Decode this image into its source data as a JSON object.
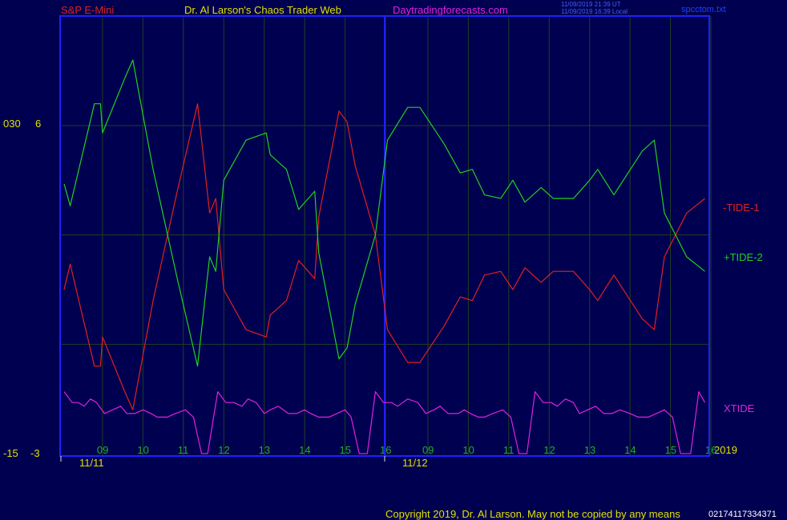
{
  "header": {
    "symbol": "S&P E-Mini",
    "title": "Dr. Al Larson's Chaos Trader Web",
    "site": "Daytradingforecasts.com",
    "timestamp_ut": "11/09/2019 21:39 UT",
    "timestamp_local": "11/09/2019 16:39 Local",
    "filename": "spcctom.txt"
  },
  "footer": {
    "copyright": "Copyright 2019, Dr. Al Larson. May not be copied by any means",
    "code": "02174117334371"
  },
  "colors": {
    "background": "#000050",
    "frame": "#2020ff",
    "grid": "#204020",
    "tide1": "#e02020",
    "tide2": "#20d020",
    "xtide": "#e020e0",
    "hour_labels": "#20b020",
    "axis_text": "#e0e000"
  },
  "chart_data": {
    "type": "line",
    "left_axis": {
      "outer_labels": [
        "030",
        "-15"
      ],
      "inner_labels": [
        "6",
        "-3"
      ]
    },
    "hour_ticks": [
      "09",
      "10",
      "11",
      "12",
      "13",
      "14",
      "15",
      "16",
      "09",
      "10",
      "11",
      "12",
      "13",
      "14",
      "15",
      "16"
    ],
    "dates": [
      "11/11",
      "11/12"
    ],
    "year": "2019",
    "series": [
      {
        "name": "-TIDE-1",
        "x": [
          0,
          0.15,
          0.75,
          0.9,
          0.95,
          1.5,
          1.7,
          2.2,
          2.8,
          3.3,
          3.6,
          3.75,
          3.95,
          4.5,
          5.0,
          5.1,
          5.5,
          5.8,
          6.2,
          6.3,
          6.8,
          7.0,
          7.2,
          7.7,
          8.0,
          8.5,
          8.8,
          9.4,
          9.8,
          10.1,
          10.4,
          10.8,
          11.1,
          11.4,
          11.8,
          12.1,
          12.6,
          13.0,
          13.2,
          13.6,
          14.3,
          14.6,
          14.85,
          15.4,
          15.85
        ],
        "values": [
          1.5,
          2.2,
          -0.6,
          -0.6,
          0.2,
          -1.3,
          -1.8,
          1.2,
          4.2,
          6.6,
          3.6,
          4.0,
          1.5,
          0.4,
          0.2,
          0.8,
          1.2,
          2.3,
          1.8,
          3.5,
          6.4,
          6.1,
          4.9,
          3.0,
          0.4,
          -0.5,
          -0.5,
          0.5,
          1.3,
          1.2,
          1.9,
          2.0,
          1.5,
          2.1,
          1.7,
          2.0,
          2.0,
          1.5,
          1.2,
          1.9,
          0.7,
          0.4,
          2.4,
          3.6,
          4.0
        ],
        "color": "#e02020"
      },
      {
        "name": "+TIDE-2",
        "x": [
          0,
          0.15,
          0.75,
          0.9,
          0.95,
          1.5,
          1.7,
          2.2,
          2.8,
          3.3,
          3.6,
          3.75,
          3.95,
          4.5,
          5.0,
          5.1,
          5.5,
          5.8,
          6.2,
          6.3,
          6.8,
          7.0,
          7.2,
          7.7,
          8.0,
          8.5,
          8.8,
          9.4,
          9.8,
          10.1,
          10.4,
          10.8,
          11.1,
          11.4,
          11.8,
          12.1,
          12.6,
          13.0,
          13.2,
          13.6,
          14.3,
          14.6,
          14.85,
          15.4,
          15.85
        ],
        "values": [
          4.4,
          3.8,
          6.6,
          6.6,
          5.8,
          7.3,
          7.8,
          4.8,
          1.8,
          -0.6,
          2.4,
          2.0,
          4.5,
          5.6,
          5.8,
          5.2,
          4.8,
          3.7,
          4.2,
          2.5,
          -0.4,
          -0.1,
          1.1,
          3.0,
          5.6,
          6.5,
          6.5,
          5.5,
          4.7,
          4.8,
          4.1,
          4.0,
          4.5,
          3.9,
          4.3,
          4.0,
          4.0,
          4.5,
          4.8,
          4.1,
          5.3,
          5.6,
          3.6,
          2.4,
          2.0
        ],
        "color": "#20d020"
      },
      {
        "name": "XTIDE",
        "x": [
          0,
          0.2,
          0.35,
          0.5,
          0.65,
          0.8,
          1.0,
          1.2,
          1.4,
          1.55,
          1.75,
          1.95,
          2.15,
          2.3,
          2.55,
          2.75,
          3.0,
          3.2,
          3.4,
          3.55,
          3.8,
          4.0,
          4.2,
          4.4,
          4.55,
          4.75,
          4.95,
          5.1,
          5.3,
          5.55,
          5.75,
          5.95,
          6.1,
          6.3,
          6.55,
          6.75,
          6.95,
          7.1,
          7.3,
          7.5,
          7.7,
          7.9,
          8.1,
          8.25,
          8.5,
          8.75,
          8.95,
          9.15,
          9.3,
          9.5,
          9.75,
          9.9,
          10.05,
          10.25,
          10.4,
          10.6,
          10.85,
          11.05,
          11.25,
          11.45,
          11.65,
          11.85,
          12.05,
          12.2,
          12.4,
          12.6,
          12.75,
          12.95,
          13.15,
          13.35,
          13.55,
          13.75,
          14.0,
          14.2,
          14.45,
          14.65,
          14.85,
          15.05,
          15.25,
          15.5,
          15.7,
          15.85
        ],
        "values": [
          -1.3,
          -1.6,
          -1.6,
          -1.7,
          -1.5,
          -1.6,
          -1.9,
          -1.8,
          -1.7,
          -1.9,
          -1.9,
          -1.8,
          -1.9,
          -2.0,
          -2.0,
          -1.9,
          -1.8,
          -2.0,
          -3.0,
          -3.0,
          -1.3,
          -1.6,
          -1.6,
          -1.7,
          -1.5,
          -1.6,
          -1.9,
          -1.8,
          -1.7,
          -1.9,
          -1.9,
          -1.8,
          -1.9,
          -2.0,
          -2.0,
          -1.9,
          -1.8,
          -2.0,
          -3.0,
          -3.0,
          -1.3,
          -1.6,
          -1.6,
          -1.7,
          -1.5,
          -1.6,
          -1.9,
          -1.8,
          -1.7,
          -1.9,
          -1.9,
          -1.8,
          -1.9,
          -2.0,
          -2.0,
          -1.9,
          -1.8,
          -2.0,
          -3.0,
          -3.0,
          -1.3,
          -1.6,
          -1.6,
          -1.7,
          -1.5,
          -1.6,
          -1.9,
          -1.8,
          -1.7,
          -1.9,
          -1.9,
          -1.8,
          -1.9,
          -2.0,
          -2.0,
          -1.9,
          -1.8,
          -2.0,
          -3.0,
          -3.0,
          -1.3,
          -1.6
        ],
        "color": "#e020e0"
      }
    ],
    "xlim": [
      0,
      15.9
    ],
    "ylim": [
      -3,
      9.5
    ],
    "grid": true,
    "legend": "right"
  }
}
